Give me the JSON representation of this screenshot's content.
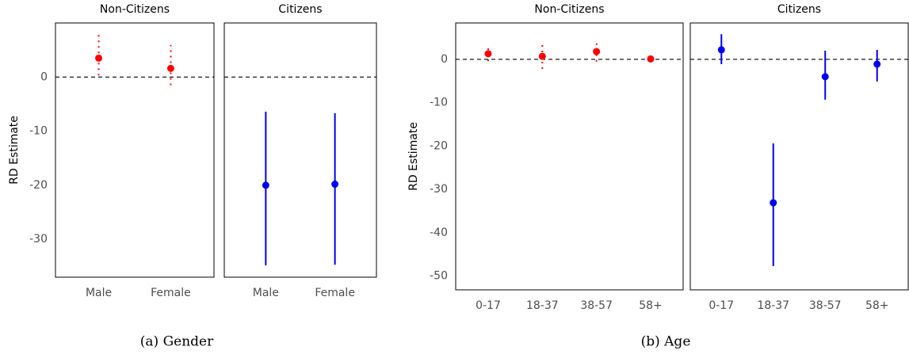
{
  "chart_data": [
    {
      "type": "errorbar",
      "caption": "(a)  Gender",
      "ylabel": "RD Estimate",
      "ylim": [
        -37,
        10
      ],
      "yticks": [
        0,
        -10,
        -20,
        -30
      ],
      "reference_line": 0,
      "panels": [
        {
          "title": "Non-Citizens",
          "categories": [
            "Male",
            "Female"
          ],
          "series": [
            {
              "color": "#ff0000",
              "linestyle": "dotted",
              "values": [
                3.5,
                1.6
              ],
              "lower": [
                0.3,
                -1.5
              ],
              "upper": [
                7.8,
                5.9
              ]
            }
          ]
        },
        {
          "title": "Citizens",
          "categories": [
            "Male",
            "Female"
          ],
          "series": [
            {
              "color": "#0000ee",
              "linestyle": "solid",
              "values": [
                -20.0,
                -19.8
              ],
              "lower": [
                -34.8,
                -34.7
              ],
              "upper": [
                -6.4,
                -6.7
              ]
            }
          ]
        }
      ]
    },
    {
      "type": "errorbar",
      "caption": "(b)  Age",
      "ylabel": "RD Estimate",
      "ylim": [
        -53.2,
        8.4
      ],
      "yticks": [
        0,
        -10,
        -20,
        -30,
        -40,
        -50
      ],
      "reference_line": 0,
      "panels": [
        {
          "title": "Non-Citizens",
          "categories": [
            "0-17",
            "18-37",
            "38-57",
            "58+"
          ],
          "series": [
            {
              "color": "#ff0000",
              "linestyle": "dotted",
              "values": [
                1.3,
                0.7,
                1.8,
                0.1
              ],
              "lower": [
                -0.4,
                -2.2,
                -0.5,
                -0.4
              ],
              "upper": [
                2.9,
                4.2,
                3.8,
                0.4
              ]
            }
          ]
        },
        {
          "title": "Citizens",
          "categories": [
            "0-17",
            "18-37",
            "38-57",
            "58+"
          ],
          "series": [
            {
              "color": "#0000ee",
              "linestyle": "solid",
              "values": [
                2.2,
                -33.1,
                -4.0,
                -1.1
              ],
              "lower": [
                -1.1,
                -47.7,
                -9.3,
                -5.1
              ],
              "upper": [
                5.8,
                -19.4,
                2.0,
                2.2
              ]
            }
          ]
        }
      ]
    }
  ]
}
